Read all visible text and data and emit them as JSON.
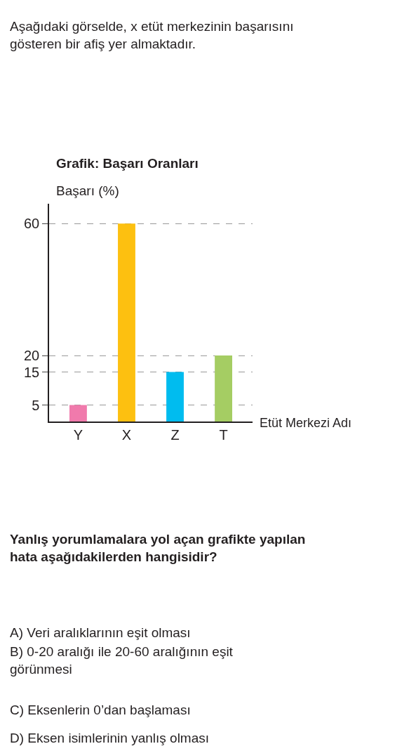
{
  "chart_data": {
    "type": "bar",
    "title": "Grafik: Başarı Oranları",
    "ylabel": "Başarı (%)",
    "xlabel": "Etüt Merkezi Adı",
    "categories": [
      "Y",
      "X",
      "Z",
      "T"
    ],
    "values": [
      5,
      60,
      15,
      20
    ],
    "colors": [
      "#f07aac",
      "#fdc010",
      "#00bcef",
      "#a5cd63"
    ],
    "ylim": [
      0,
      66
    ],
    "yticks": [
      5,
      15,
      20,
      60
    ],
    "grid": "y",
    "annotations": [
      "Aşağıdaki görselde, x etüt merkezinin başarısını gösteren bir afiş yer almaktadır.",
      "Yanlış yorumlamalara yol açan grafikte yapılan hata aşağıdakilerden hangisidir?",
      "A) Veri aralıklarının eşit olması",
      "B) 0-20 aralığı ile 20-60 aralığının eşit görünmesi",
      "C) Eksenlerin 0’dan başlaması",
      "D) Eksen isimlerinin yanlış olması"
    ]
  }
}
